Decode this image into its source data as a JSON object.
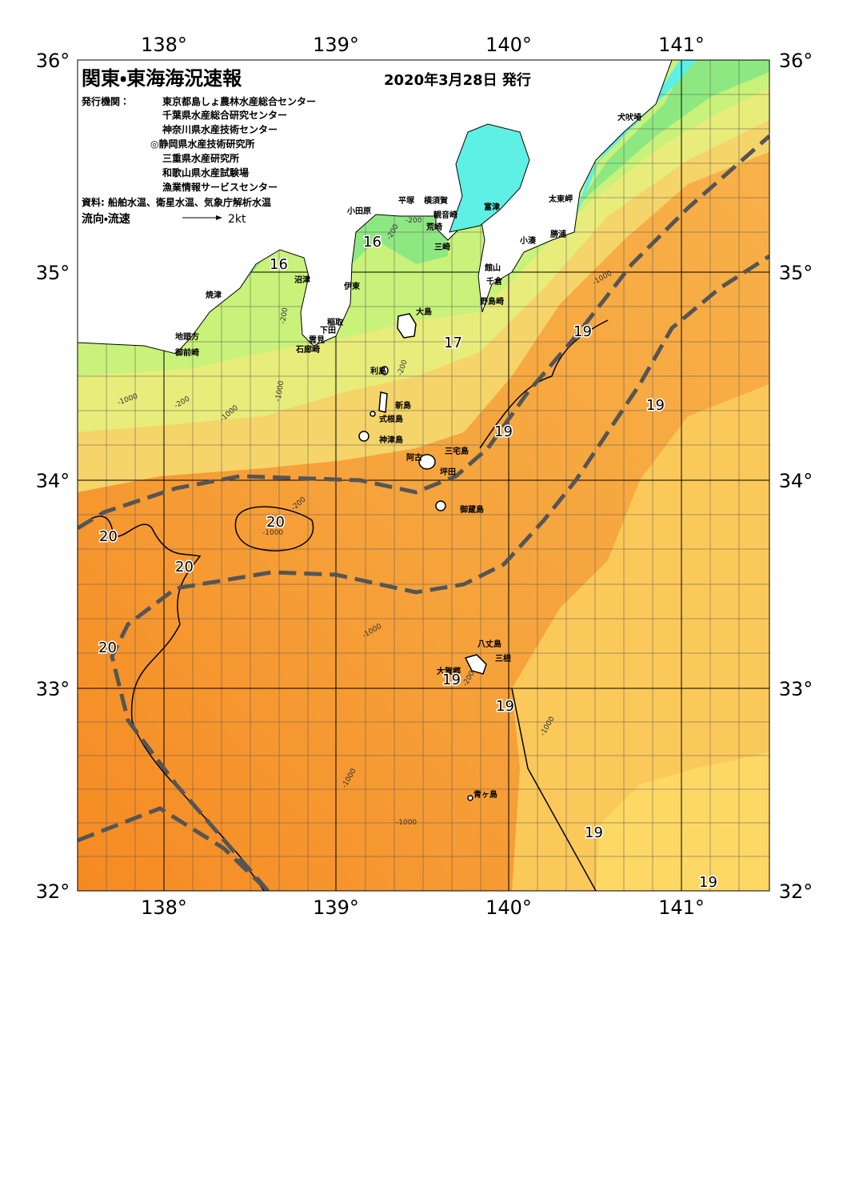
{
  "header": {
    "title": "関東・東海海況速報",
    "date": "2020年3月28日 発行",
    "issuers_label": "発行機関：",
    "issuers": [
      "東京都島しょ農林水産総合センター",
      "千葉県水産総合研究センター",
      "神奈川県水産技術センター",
      "◎静岡県水産技術研究所",
      "三重県水産研究所",
      "和歌山県水産試験場",
      "漁業情報サービスセンター"
    ],
    "sources": "資料: 船舶水温、衛星水温、気象庁解析水温",
    "legend": {
      "label": "流向・流速",
      "scale": "2kt"
    }
  },
  "axes": {
    "lon": [
      "138°",
      "139°",
      "140°",
      "141°"
    ],
    "lat": [
      "36°",
      "35°",
      "34°",
      "33°",
      "32°"
    ]
  },
  "places": [
    "犬吠埼",
    "太東岬",
    "勝浦",
    "小湊",
    "富津",
    "館山",
    "千倉",
    "野島崎",
    "横須賀",
    "観音崎",
    "荒崎",
    "三崎",
    "平塚",
    "小田原",
    "伊東",
    "沼津",
    "焼津",
    "稲取",
    "下田",
    "雲見",
    "石廊崎",
    "地頭方",
    "御前崎",
    "大島",
    "利島",
    "新島",
    "式根島",
    "神津島",
    "三宅島",
    "阿古",
    "坪田",
    "御蔵島",
    "八丈島",
    "三根",
    "大賀郷",
    "青ヶ島"
  ],
  "isotherms": [
    "16",
    "16",
    "17",
    "19",
    "19",
    "19",
    "20",
    "20",
    "20",
    "20",
    "19",
    "19",
    "19",
    "19"
  ],
  "depths": [
    "-200",
    "-200",
    "-200",
    "-200",
    "-200",
    "-1000",
    "-1000",
    "-200",
    "-1000",
    "-1000",
    "-1000",
    "-200",
    "-1000",
    "-1000",
    "-1000",
    "-1000"
  ]
}
